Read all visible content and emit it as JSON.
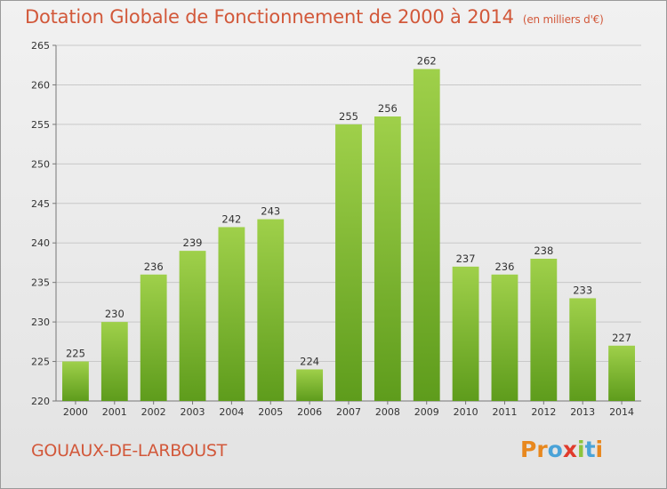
{
  "header": {
    "title": "Dotation Globale de Fonctionnement de 2000 à 2014",
    "subtitle": "(en milliers d'€)"
  },
  "footer": {
    "commune": "GOUAUX-DE-LARBOUST",
    "brand": "Proxiti",
    "brand_colors": [
      "#e8881e",
      "#e8881e",
      "#4aa3d8",
      "#e03b2c",
      "#8cc43c",
      "#4aa3d8",
      "#e8881e"
    ]
  },
  "chart_data": {
    "type": "bar",
    "categories": [
      "2000",
      "2001",
      "2002",
      "2003",
      "2004",
      "2005",
      "2006",
      "2007",
      "2008",
      "2009",
      "2010",
      "2011",
      "2012",
      "2013",
      "2014"
    ],
    "values": [
      225,
      230,
      236,
      239,
      242,
      243,
      224,
      255,
      256,
      262,
      237,
      236,
      238,
      233,
      227
    ],
    "ylim": [
      220,
      265
    ],
    "yticks": [
      220,
      225,
      230,
      235,
      240,
      245,
      250,
      255,
      260,
      265
    ],
    "grid": true,
    "bar_color_top": "#9fd04a",
    "bar_color_bottom": "#5e9c1c"
  }
}
